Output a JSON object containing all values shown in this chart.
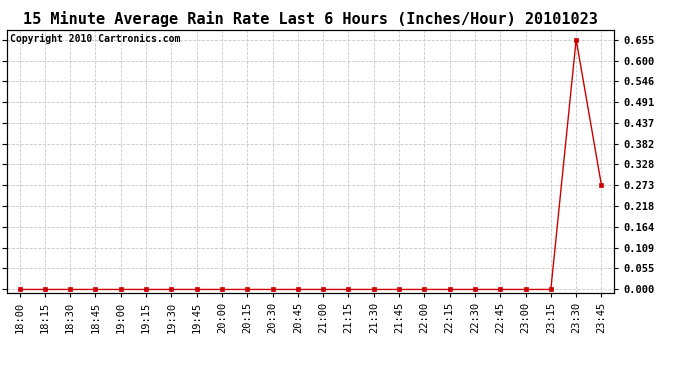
{
  "title": "15 Minute Average Rain Rate Last 6 Hours (Inches/Hour) 20101023",
  "copyright_text": "Copyright 2010 Cartronics.com",
  "background_color": "#ffffff",
  "plot_bg_color": "#ffffff",
  "grid_color": "#c8c8c8",
  "line_color": "#cc0000",
  "marker_color": "#cc0000",
  "x_labels": [
    "18:00",
    "18:15",
    "18:30",
    "18:45",
    "19:00",
    "19:15",
    "19:30",
    "19:45",
    "20:00",
    "20:15",
    "20:30",
    "20:45",
    "21:00",
    "21:15",
    "21:30",
    "21:45",
    "22:00",
    "22:15",
    "22:30",
    "22:45",
    "23:00",
    "23:15",
    "23:30",
    "23:45"
  ],
  "y_values": [
    0.0,
    0.0,
    0.0,
    0.0,
    0.0,
    0.0,
    0.0,
    0.0,
    0.0,
    0.0,
    0.0,
    0.0,
    0.0,
    0.0,
    0.0,
    0.0,
    0.0,
    0.0,
    0.0,
    0.0,
    0.0,
    0.0,
    0.655,
    0.273
  ],
  "yticks": [
    0.0,
    0.055,
    0.109,
    0.164,
    0.218,
    0.273,
    0.328,
    0.382,
    0.437,
    0.491,
    0.546,
    0.6,
    0.655
  ],
  "ylim": [
    -0.008,
    0.68
  ],
  "title_fontsize": 11,
  "axis_fontsize": 7.5,
  "copyright_fontsize": 7
}
